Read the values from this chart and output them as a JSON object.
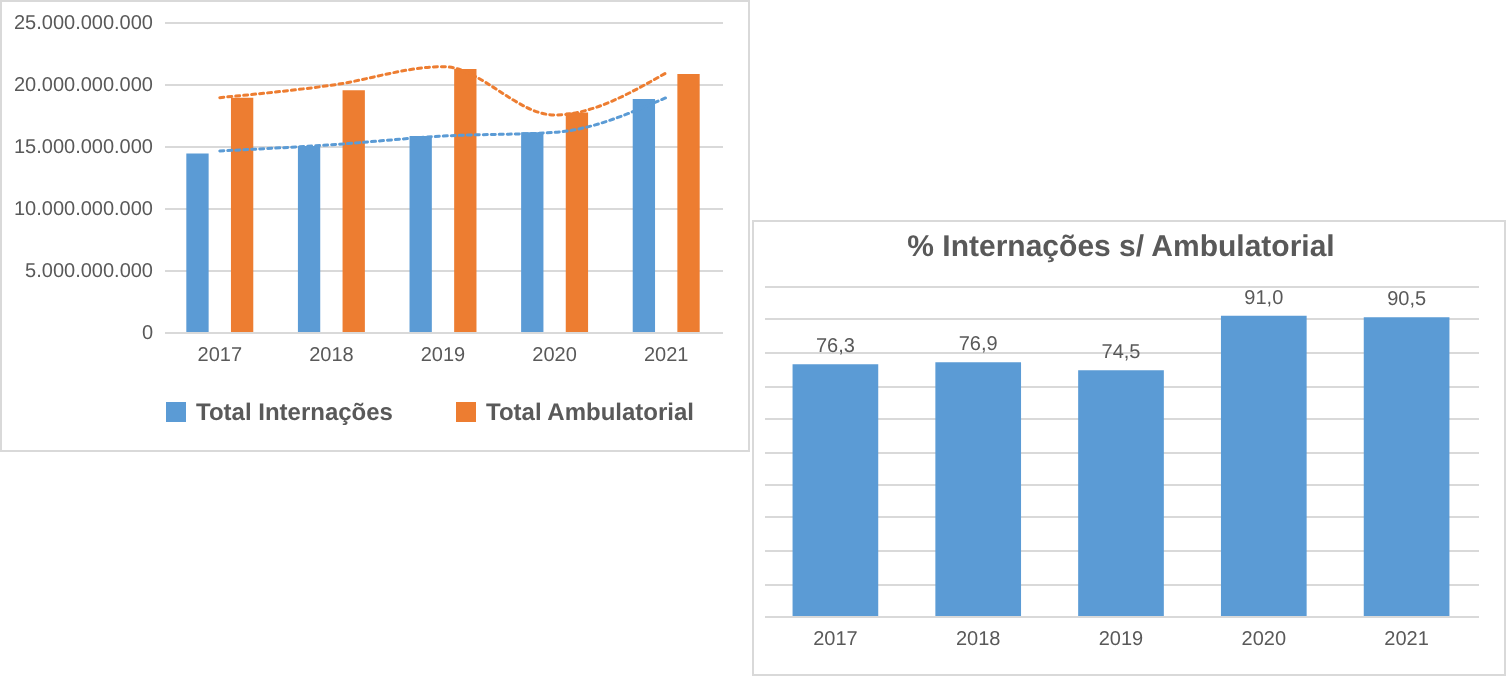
{
  "chart_data": [
    {
      "type": "bar",
      "categories": [
        "2017",
        "2018",
        "2019",
        "2020",
        "2021"
      ],
      "series": [
        {
          "name": "Total Internações",
          "color": "#5b9bd5",
          "values": [
            14400000000,
            15000000000,
            15800000000,
            16100000000,
            18800000000
          ]
        },
        {
          "name": "Total Ambulatorial",
          "color": "#ed7d31",
          "values": [
            18900000000,
            19500000000,
            21200000000,
            17700000000,
            20800000000
          ]
        },
        {
          "type": "line",
          "color": "#5b9bd5",
          "line_style": "dotted",
          "values": [
            14600000000,
            15100000000,
            15800000000,
            16100000000,
            18900000000
          ]
        },
        {
          "type": "line",
          "color": "#ed7d31",
          "line_style": "dotted",
          "values": [
            18900000000,
            19900000000,
            21400000000,
            17500000000,
            20900000000
          ]
        }
      ],
      "ylim": [
        0,
        25000000000
      ],
      "yticks": [
        {
          "value": 0,
          "label": "0"
        },
        {
          "value": 5000000000,
          "label": "5.000.000.000"
        },
        {
          "value": 10000000000,
          "label": "10.000.000.000"
        },
        {
          "value": 15000000000,
          "label": "15.000.000.000"
        },
        {
          "value": 20000000000,
          "label": "20.000.000.000"
        },
        {
          "value": 25000000000,
          "label": "25.000.000.000"
        }
      ],
      "grid": "y",
      "legend": "bottom"
    },
    {
      "type": "bar",
      "title": "% Internações s/ Ambulatorial",
      "categories": [
        "2017",
        "2018",
        "2019",
        "2020",
        "2021"
      ],
      "color": "#5b9bd5",
      "values": [
        76.3,
        76.9,
        74.5,
        91.0,
        90.5
      ],
      "value_labels": [
        "76,3",
        "76,9",
        "74,5",
        "91,0",
        "90,5"
      ],
      "ylim": [
        0,
        100
      ],
      "yticks": [
        {
          "value": 0,
          "label": null
        },
        {
          "value": 10,
          "label": null
        },
        {
          "value": 20,
          "label": null
        },
        {
          "value": 30,
          "label": null
        },
        {
          "value": 40,
          "label": null
        },
        {
          "value": 50,
          "label": null
        },
        {
          "value": 60,
          "label": null
        },
        {
          "value": 70,
          "label": null
        },
        {
          "value": 80,
          "label": null
        },
        {
          "value": 90,
          "label": null
        },
        {
          "value": 100,
          "label": null
        }
      ],
      "grid": "y",
      "tick_labels": "x"
    }
  ]
}
